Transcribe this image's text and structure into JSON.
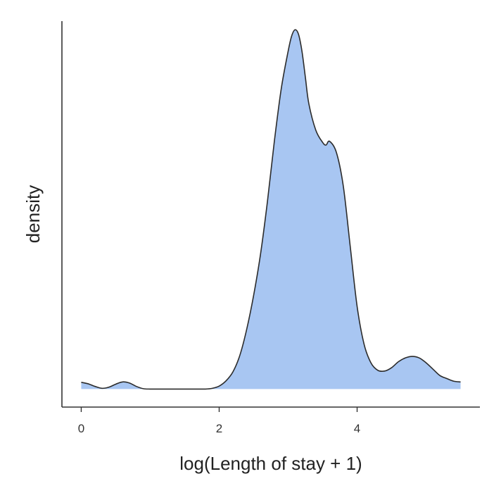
{
  "chart_data": {
    "type": "area",
    "title": "",
    "xlabel": "log(Length of stay + 1)",
    "ylabel": "density",
    "xlim": [
      -0.28,
      5.78
    ],
    "ylim": [
      -0.048,
      0.98
    ],
    "x_ticks": [
      0,
      2,
      4
    ],
    "y_ticks": [],
    "grid": false,
    "legend": "none",
    "fill_color": "#a8c6f2",
    "line_color": "#2b2b2b",
    "series": [
      {
        "x": [
          0,
          0.1,
          0.2,
          0.3,
          0.4,
          0.5,
          0.6,
          0.7,
          0.8,
          0.9,
          1.0,
          1.2,
          1.4,
          1.6,
          1.8,
          1.9,
          2.0,
          2.1,
          2.2,
          2.3,
          2.4,
          2.5,
          2.6,
          2.7,
          2.8,
          2.9,
          3.0,
          3.05,
          3.1,
          3.15,
          3.2,
          3.25,
          3.3,
          3.4,
          3.5,
          3.55,
          3.6,
          3.7,
          3.8,
          3.9,
          4.0,
          4.1,
          4.2,
          4.3,
          4.4,
          4.5,
          4.6,
          4.7,
          4.8,
          4.9,
          5.0,
          5.1,
          5.2,
          5.3,
          5.4,
          5.5
        ],
        "y": [
          0.018,
          0.014,
          0.007,
          0.002,
          0.005,
          0.013,
          0.019,
          0.016,
          0.007,
          0.001,
          0.0,
          0.0,
          0.0,
          0.0,
          0.0,
          0.002,
          0.008,
          0.022,
          0.046,
          0.09,
          0.16,
          0.25,
          0.36,
          0.5,
          0.66,
          0.8,
          0.9,
          0.94,
          0.957,
          0.945,
          0.9,
          0.83,
          0.76,
          0.69,
          0.657,
          0.65,
          0.66,
          0.63,
          0.54,
          0.38,
          0.22,
          0.12,
          0.07,
          0.05,
          0.048,
          0.057,
          0.073,
          0.083,
          0.087,
          0.083,
          0.07,
          0.053,
          0.036,
          0.028,
          0.021,
          0.019
        ]
      }
    ]
  }
}
